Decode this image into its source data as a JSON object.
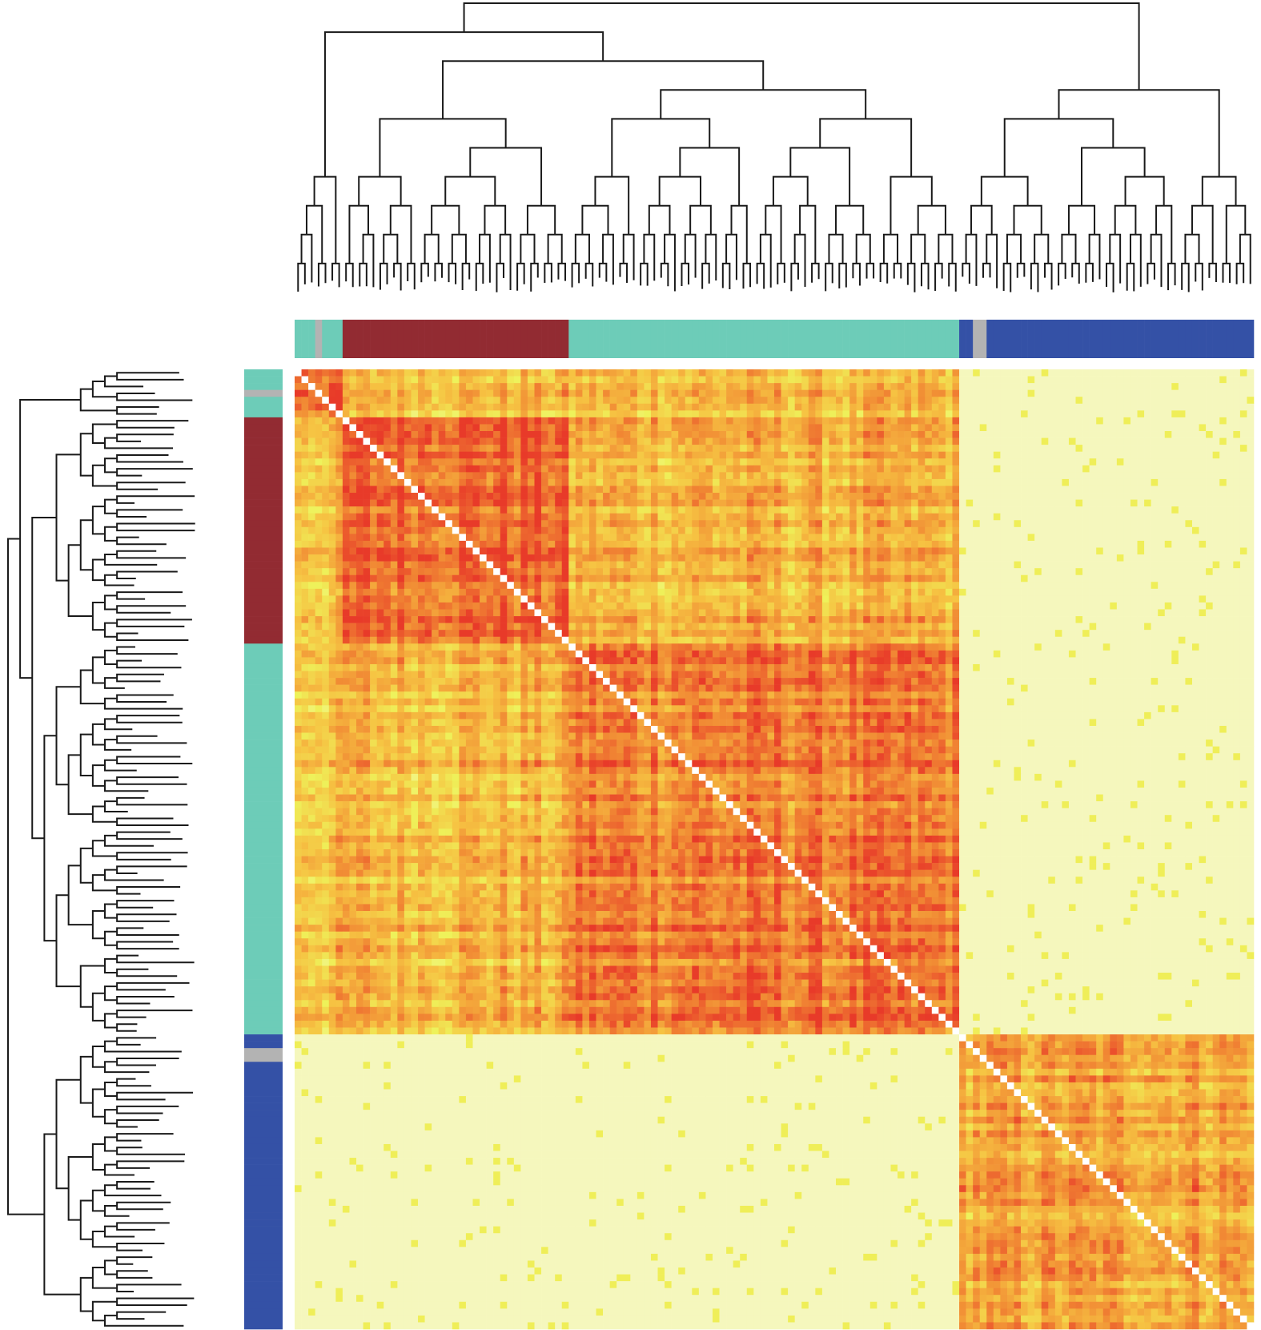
{
  "chart_data": {
    "type": "heatmap",
    "title": "",
    "xlabel": "",
    "ylabel": "",
    "n_samples": 140,
    "value_range": [
      0,
      1
    ],
    "diagonal_value": 1,
    "grid": false,
    "legend": "none",
    "colorscale": [
      "#f6f7c6",
      "#eef25a",
      "#f6c242",
      "#f18a34",
      "#e83a29"
    ],
    "cluster_colors": {
      "teal": "#6dccb8",
      "darkred": "#922b32",
      "blue": "#3451a6",
      "gray": "#b3b3b3"
    },
    "segments": [
      {
        "cluster": "teal",
        "count": 3
      },
      {
        "cluster": "gray",
        "count": 1
      },
      {
        "cluster": "teal",
        "count": 3
      },
      {
        "cluster": "darkred",
        "count": 33
      },
      {
        "cluster": "teal",
        "count": 57
      },
      {
        "cluster": "blue",
        "count": 2
      },
      {
        "cluster": "gray",
        "count": 2
      },
      {
        "cluster": "blue",
        "count": 39
      }
    ],
    "blocks": [
      {
        "rows": [
          0,
          6
        ],
        "cols": [
          0,
          6
        ],
        "level": 0.85
      },
      {
        "rows": [
          7,
          39
        ],
        "cols": [
          7,
          39
        ],
        "level": 0.85
      },
      {
        "rows": [
          40,
          96
        ],
        "cols": [
          40,
          96
        ],
        "level": 0.78
      },
      {
        "rows": [
          97,
          139
        ],
        "cols": [
          97,
          139
        ],
        "level": 0.62
      },
      {
        "rows": [
          0,
          6
        ],
        "cols": [
          7,
          96
        ],
        "level": 0.5
      },
      {
        "rows": [
          7,
          39
        ],
        "cols": [
          40,
          96
        ],
        "level": 0.55
      },
      {
        "rows": [
          0,
          96
        ],
        "cols": [
          97,
          139
        ],
        "level": 0.02
      }
    ]
  }
}
